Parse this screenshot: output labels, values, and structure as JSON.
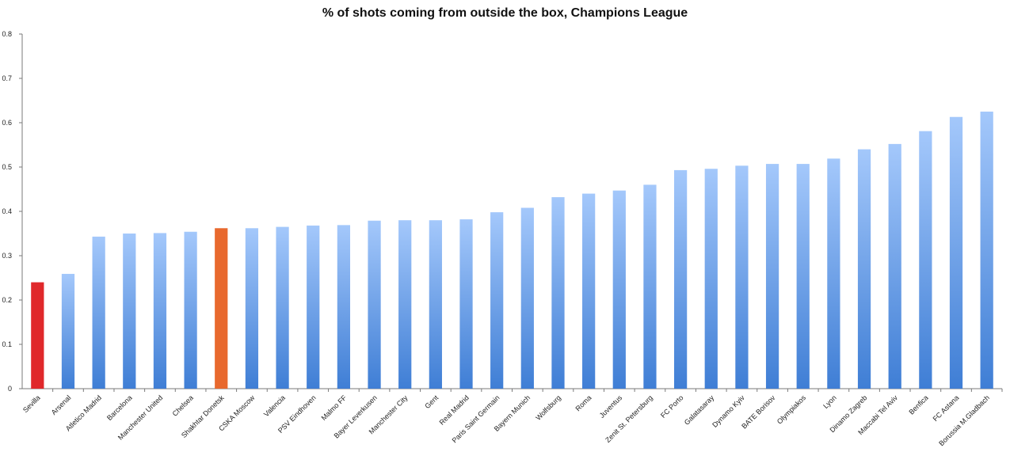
{
  "chart_data": {
    "type": "bar",
    "title": "% of shots coming from outside the box, Champions League",
    "xlabel": "",
    "ylabel": "",
    "ylim": [
      0,
      0.8
    ],
    "yticks": [
      "0",
      "0.1",
      "0.2",
      "0.3",
      "0.4",
      "0.5",
      "0.6",
      "0.7",
      "0.8"
    ],
    "grid": false,
    "categories": [
      "Sevilla",
      "Arsenal",
      "Atletico Madrid",
      "Barcelona",
      "Manchester United",
      "Chelsea",
      "Shakhtar Donetsk",
      "CSKA Moscow",
      "Valencia",
      "PSV Eindhoven",
      "Malmo FF",
      "Bayer Leverkusen",
      "Manchester City",
      "Gent",
      "Real Madrid",
      "Paris Saint Germain",
      "Bayern Munich",
      "Wolfsburg",
      "Roma",
      "Juventus",
      "Zenit St. Petersburg",
      "FC Porto",
      "Galatasaray",
      "Dynamo Kyiv",
      "BATE Borisov",
      "Olympiakos",
      "Lyon",
      "Dinamo Zagreb",
      "Maccabi Tel Aviv",
      "Benfica",
      "FC Astana",
      "Borussia M.Gladbach"
    ],
    "values": [
      0.24,
      0.259,
      0.343,
      0.35,
      0.351,
      0.354,
      0.362,
      0.362,
      0.365,
      0.368,
      0.369,
      0.379,
      0.38,
      0.38,
      0.382,
      0.398,
      0.408,
      0.432,
      0.44,
      0.447,
      0.46,
      0.493,
      0.496,
      0.503,
      0.507,
      0.507,
      0.519,
      0.54,
      0.552,
      0.581,
      0.613,
      0.625
    ],
    "colors": {
      "default_top": "#a4c8fb",
      "default_bottom": "#3f7ed5",
      "sevilla": "#e0282b",
      "shakhtar": "#e8692e",
      "axis": "#7a7a7a"
    },
    "highlights": {
      "Sevilla": "sevilla",
      "Shakhtar Donetsk": "shakhtar"
    }
  }
}
